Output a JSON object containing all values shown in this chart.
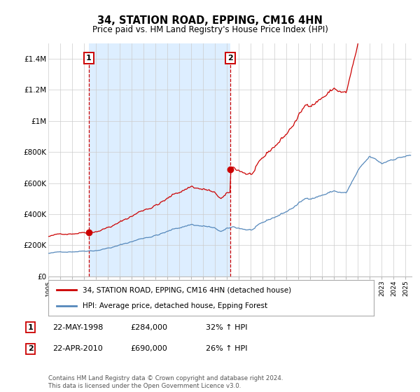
{
  "title": "34, STATION ROAD, EPPING, CM16 4HN",
  "subtitle": "Price paid vs. HM Land Registry's House Price Index (HPI)",
  "red_line_color": "#cc0000",
  "blue_line_color": "#5588bb",
  "marker_color": "#cc0000",
  "annotation_box_color": "#cc0000",
  "grid_color": "#cccccc",
  "bg_color": "#ffffff",
  "shade_color": "#ddeeff",
  "legend_label_red": "34, STATION ROAD, EPPING, CM16 4HN (detached house)",
  "legend_label_blue": "HPI: Average price, detached house, Epping Forest",
  "transaction1_label": "1",
  "transaction1_date": "22-MAY-1998",
  "transaction1_price": "£284,000",
  "transaction1_hpi": "32% ↑ HPI",
  "transaction1_year": 1998.38,
  "transaction1_value": 284000,
  "transaction2_label": "2",
  "transaction2_date": "22-APR-2010",
  "transaction2_price": "£690,000",
  "transaction2_hpi": "26% ↑ HPI",
  "transaction2_year": 2010.3,
  "transaction2_value": 690000,
  "footer": "Contains HM Land Registry data © Crown copyright and database right 2024.\nThis data is licensed under the Open Government Licence v3.0.",
  "ylim": [
    0,
    1500000
  ],
  "yticks": [
    0,
    200000,
    400000,
    600000,
    800000,
    1000000,
    1200000,
    1400000
  ],
  "ytick_labels": [
    "£0",
    "£200K",
    "£400K",
    "£600K",
    "£800K",
    "£1M",
    "£1.2M",
    "£1.4M"
  ],
  "xmin": 1995.0,
  "xmax": 2025.5
}
